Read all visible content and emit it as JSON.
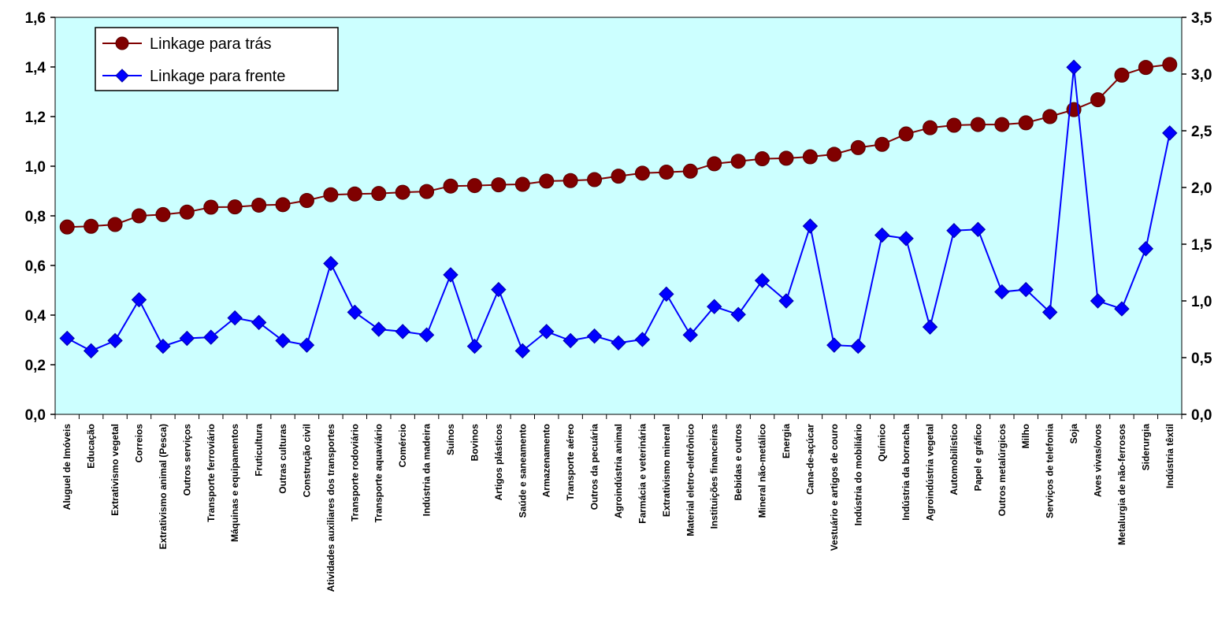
{
  "chart_data": {
    "type": "line",
    "title": "",
    "xlabel": "",
    "ylabel": "",
    "ylim": [
      0,
      1.6
    ],
    "y2lim": [
      0,
      3.5
    ],
    "yticks": [
      "0,0",
      "0,2",
      "0,4",
      "0,6",
      "0,8",
      "1,0",
      "1,2",
      "1,4",
      "1,6"
    ],
    "y2ticks": [
      "0,0",
      "0,5",
      "1,0",
      "1,5",
      "2,0",
      "2,5",
      "3,0",
      "3,5"
    ],
    "legend": "top-left",
    "grid": false,
    "categories": [
      "Aluguel de Imóveis",
      "Educação",
      "Extrativismo vegetal",
      "Correios",
      "Extrativismo animal (Pesca)",
      "Outros serviços",
      "Transporte ferroviário",
      "Máquinas e equipamentos",
      "Fruticultura",
      "Outras culturas",
      "Construção civil",
      "Atividades auxiliares dos transportes",
      "Transporte rodoviário",
      "Transporte aquaviário",
      "Comércio",
      "Indústria da madeira",
      "Suínos",
      "Bovinos",
      "Artigos plásticos",
      "Saúde e saneamento",
      "Armazenamento",
      "Transporte aéreo",
      "Outros da pecuária",
      "Agroindústria animal",
      "Farmácia e veterinária",
      "Extrativismo mineral",
      "Material eletro-eletrônico",
      "Instituições financeiras",
      "Bebidas e outros",
      "Mineral não-metálico",
      "Energia",
      "Cana-de-açúcar",
      "Vestuário e artigos de couro",
      "Indústria do mobiliário",
      "Químico",
      "Indústria da borracha",
      "Agroindústria vegetal",
      "Automobilístico",
      "Papel e gráfico",
      "Outros metalúrgicos",
      "Milho",
      "Serviços de telefonia",
      "Soja",
      "Aves vivas/ovos",
      "Metalurgia de não-ferrosos",
      "Siderurgia",
      "Indústria têxtil"
    ],
    "series": [
      {
        "name": "Linkage para trás",
        "axis": "left",
        "color": "#800000",
        "marker": "circle",
        "values": [
          0.755,
          0.758,
          0.765,
          0.8,
          0.805,
          0.815,
          0.835,
          0.836,
          0.843,
          0.845,
          0.862,
          0.885,
          0.888,
          0.89,
          0.895,
          0.898,
          0.92,
          0.922,
          0.925,
          0.927,
          0.94,
          0.942,
          0.946,
          0.96,
          0.972,
          0.976,
          0.98,
          1.01,
          1.02,
          1.03,
          1.032,
          1.038,
          1.048,
          1.075,
          1.088,
          1.13,
          1.155,
          1.165,
          1.168,
          1.168,
          1.175,
          1.2,
          1.228,
          1.268,
          1.367,
          1.398,
          1.41
        ]
      },
      {
        "name": "Linkage para frente",
        "axis": "right",
        "color": "#0000ff",
        "marker": "diamond",
        "values": [
          0.67,
          0.56,
          0.65,
          1.01,
          0.6,
          0.67,
          0.68,
          0.85,
          0.81,
          0.65,
          0.61,
          1.33,
          0.9,
          0.75,
          0.73,
          0.7,
          1.23,
          0.6,
          1.1,
          0.56,
          0.73,
          0.65,
          0.69,
          0.63,
          0.66,
          1.06,
          0.7,
          0.95,
          0.88,
          1.18,
          1.0,
          1.66,
          0.61,
          0.6,
          1.58,
          1.55,
          0.77,
          1.62,
          1.63,
          1.08,
          1.1,
          0.9,
          3.06,
          1.0,
          0.93,
          1.46,
          2.48
        ]
      }
    ]
  }
}
